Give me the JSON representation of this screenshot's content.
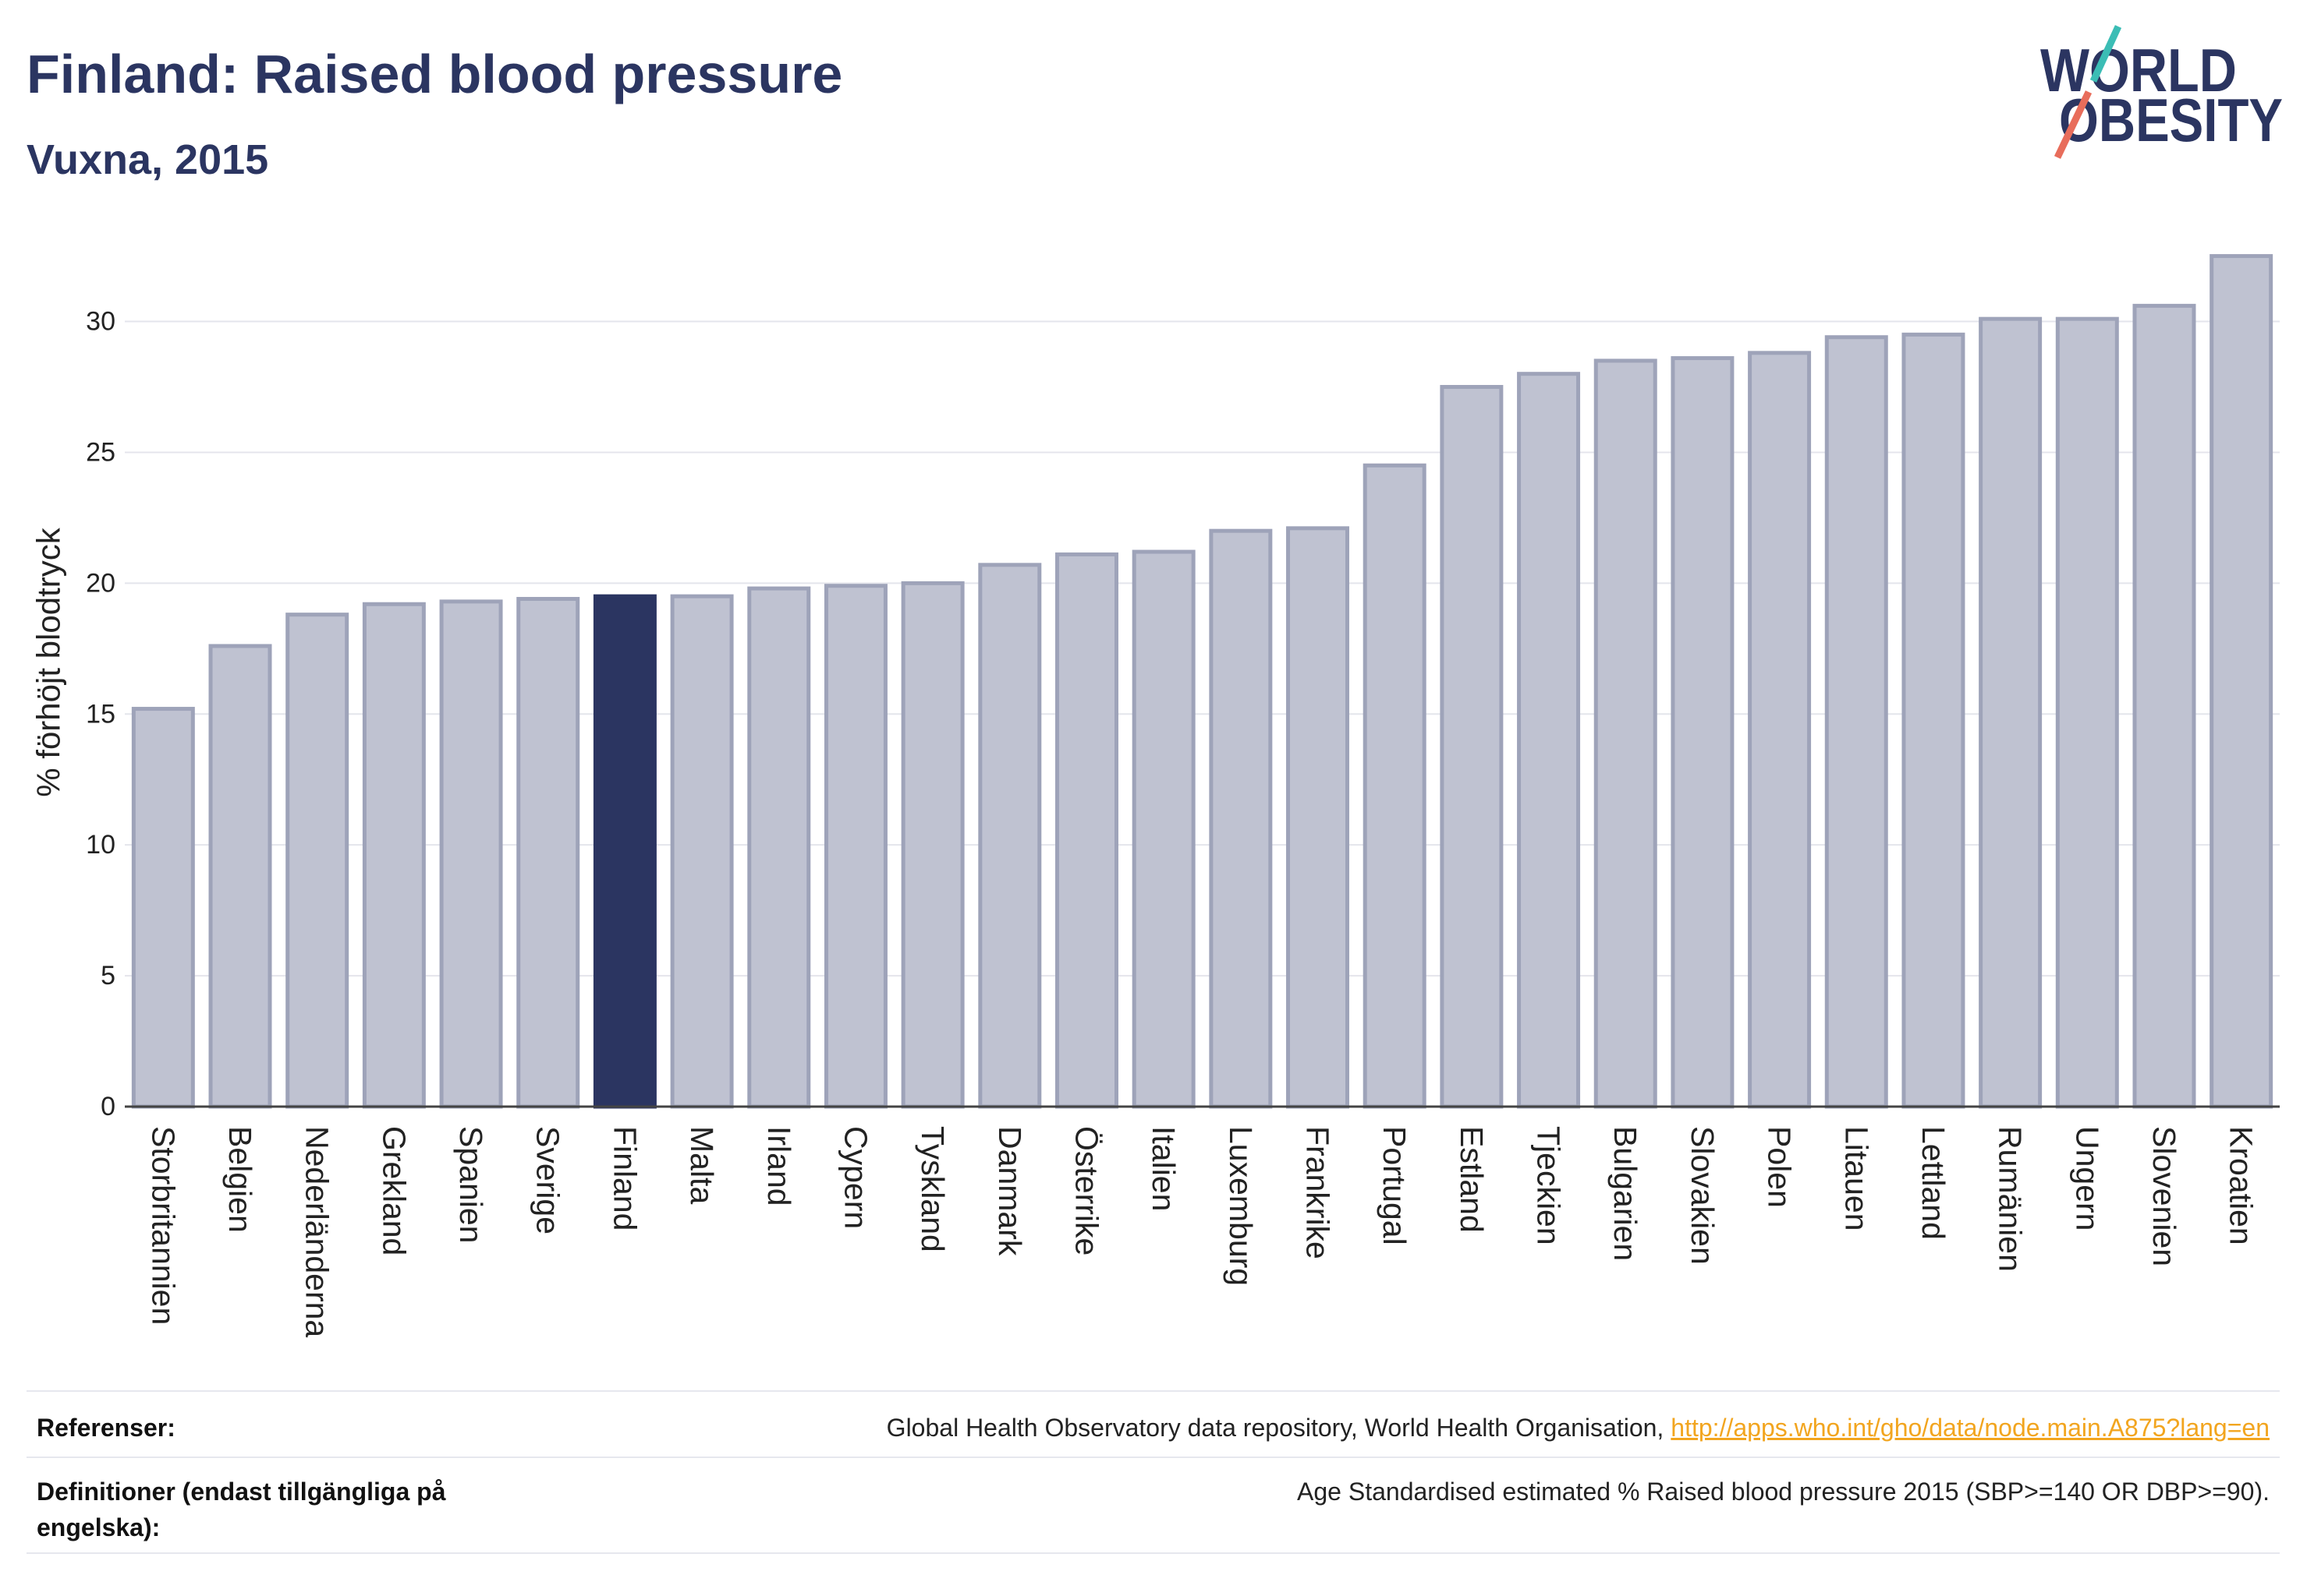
{
  "chart_data": {
    "type": "bar",
    "title": "Finland: Raised blood pressure",
    "subtitle": "Vuxna, 2015",
    "xlabel": "",
    "ylabel": "% förhöjt blodtryck",
    "ylim": [
      0,
      33.5
    ],
    "yticks": [
      0,
      5,
      10,
      15,
      20,
      25,
      30
    ],
    "grid": true,
    "categories": [
      "Storbritannien",
      "Belgien",
      "Nederländerna",
      "Grekland",
      "Spanien",
      "Sverige",
      "Finland",
      "Malta",
      "Irland",
      "Cypern",
      "Tyskland",
      "Danmark",
      "Österrike",
      "Italien",
      "Luxemburg",
      "Frankrike",
      "Portugal",
      "Estland",
      "Tjeckien",
      "Bulgarien",
      "Slovakien",
      "Polen",
      "Litauen",
      "Lettland",
      "Rumänien",
      "Ungern",
      "Slovenien",
      "Kroatien"
    ],
    "values": [
      15.2,
      17.6,
      18.8,
      19.2,
      19.3,
      19.4,
      19.5,
      19.5,
      19.8,
      19.9,
      20.0,
      20.7,
      21.1,
      21.2,
      22.0,
      22.1,
      24.5,
      27.5,
      28.0,
      28.5,
      28.6,
      28.8,
      29.4,
      29.5,
      30.1,
      30.1,
      30.6,
      32.5
    ],
    "highlight_index": 6,
    "colors": {
      "bar": "#bfc2d1",
      "bar_border": "#9ea3b9",
      "highlight": "#2b3561",
      "grid": "#e4e5ec",
      "axis": "#444444"
    }
  },
  "logo": {
    "line1": "WORLD",
    "line2": "OBESITY",
    "colors": {
      "text": "#2b3561",
      "slash_top": "#3bbdb5",
      "slash_bottom": "#e86d5b"
    }
  },
  "footer": {
    "references_label": "Referenser:",
    "references_text": "Global Health Observatory data repository, World Health Organisation,",
    "references_link": "http://apps.who.int/gho/data/node.main.A875?lang=en",
    "definitions_label": "Definitioner (endast tillgängliga på engelska):",
    "definitions_text": "Age Standardised estimated % Raised blood pressure 2015 (SBP>=140 OR DBP>=90)."
  }
}
